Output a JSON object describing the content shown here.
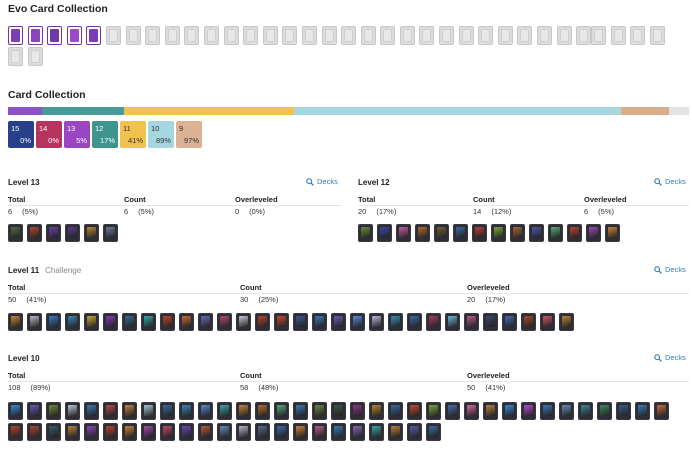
{
  "evo": {
    "title": "Evo Card Collection",
    "owned": 5,
    "total": 36
  },
  "collection": {
    "title": "Card Collection",
    "bar": [
      {
        "color": "#8c52c7",
        "share": 0.05
      },
      {
        "color": "#4a9a9a",
        "share": 0.12
      },
      {
        "color": "#f2c24e",
        "share": 0.25
      },
      {
        "color": "#a6d6e0",
        "share": 0.48
      },
      {
        "color": "#d9ad8a",
        "share": 0.07
      },
      {
        "color": "#e3e3e3",
        "share": 0.03
      }
    ],
    "tiles": [
      {
        "level": "15",
        "pct": "0%",
        "color": "#27408b"
      },
      {
        "level": "14",
        "pct": "0%",
        "color": "#b7345e"
      },
      {
        "level": "13",
        "pct": "5%",
        "color": "#9a45c2"
      },
      {
        "level": "12",
        "pct": "17%",
        "color": "#3e9590"
      },
      {
        "level": "11",
        "pct": "41%",
        "color": "#f2c24e"
      },
      {
        "level": "10",
        "pct": "89%",
        "color": "#a6d6e0"
      },
      {
        "level": "9",
        "pct": "97%",
        "color": "#dcb194"
      }
    ]
  },
  "labels": {
    "decks": "Decks",
    "total": "Total",
    "count": "Count",
    "overleveled": "Overleveled"
  },
  "levels": [
    {
      "key": "l13",
      "title": "Level 13",
      "sub": "",
      "total": "6",
      "total_pct": "(5%)",
      "count": "6",
      "count_pct": "(5%)",
      "over": "0",
      "over_pct": "(0%)",
      "cards": [
        "#4f6b3a",
        "#b8442f",
        "#6c3fa8",
        "#5a3b8a",
        "#b58a3e",
        "#6b7b9a"
      ]
    },
    {
      "key": "l12",
      "title": "Level 12",
      "sub": "",
      "total": "20",
      "total_pct": "(17%)",
      "count": "14",
      "count_pct": "(12%)",
      "over": "6",
      "over_pct": "(5%)",
      "cards": [
        "#6a8a3a",
        "#3a4aa8",
        "#c95a9e",
        "#b36a2e",
        "#7a5a3a",
        "#3a6aa8",
        "#b8442f",
        "#7aa83a",
        "#a8663a",
        "#4a5aa8",
        "#5aa87a",
        "#b8442f",
        "#9a4ab8",
        "#c8843a"
      ]
    },
    {
      "key": "l11",
      "title": "Level 11",
      "sub": "Challenge",
      "total": "50",
      "total_pct": "(41%)",
      "count": "30",
      "count_pct": "(25%)",
      "over": "20",
      "over_pct": "(17%)",
      "cards": [
        "#c8843a",
        "#b8b8c8",
        "#3a7ac8",
        "#3a8ab8",
        "#c8a83a",
        "#8a3ab8",
        "#3a6a8a",
        "#3aa8a8",
        "#b84a2e",
        "#c86a3a",
        "#6a6ab8",
        "#b84a6a",
        "#c8c8d8",
        "#b8442f",
        "#c84a2e",
        "#3a5a9a",
        "#3a7ab8",
        "#6a5ab8",
        "#5a8ad8",
        "#b8b8d8",
        "#3a8ab8",
        "#3a6aa8",
        "#a83a5a",
        "#6ab8d8",
        "#b85a8a",
        "#3a4a6a",
        "#4a6ab8",
        "#a84a2e",
        "#c85a6a",
        "#b8843a"
      ]
    },
    {
      "key": "l10",
      "title": "Level 10",
      "sub": "",
      "total": "108",
      "total_pct": "(89%)",
      "count": "58",
      "count_pct": "(48%)",
      "over": "50",
      "over_pct": "(41%)",
      "cards": [
        "#3a8ad8",
        "#6a5ab8",
        "#6a8a3a",
        "#b8c8d8",
        "#3a7ab8",
        "#b84a4a",
        "#c8843a",
        "#a8c8d8",
        "#3a6a9a",
        "#3a8ab8",
        "#5a8ad8",
        "#3aa8a8",
        "#c8843a",
        "#b86a2e",
        "#5aa87a",
        "#3a7ab8",
        "#6a8a3a",
        "#3a5a4a",
        "#8a3a8a",
        "#b8842e",
        "#3a6aa8",
        "#c84a2e",
        "#7aa83a",
        "#4a6aa8",
        "#d86a9a",
        "#b8843a",
        "#3a8ad8",
        "#b84ad8",
        "#3a7ab8",
        "#6a8ab8",
        "#3a8a9a",
        "#3a8a5a",
        "#3a5a8a",
        "#3a7ab8",
        "#c86a3a",
        "#b8442f",
        "#a84a3a",
        "#3a5a6a",
        "#b8843a",
        "#8a4ab8",
        "#b8442f",
        "#c8843a",
        "#a84aa8",
        "#c84a6a",
        "#6a4ab8",
        "#b85a3a",
        "#6a8ab8",
        "#b8b8c8",
        "#5a6a8a",
        "#3a6aa8",
        "#c8843a",
        "#b85a8a",
        "#3a7ab8",
        "#8a6ab8",
        "#3aa8a8",
        "#b8843a",
        "#5a5aa8",
        "#3a6a9a"
      ]
    }
  ]
}
